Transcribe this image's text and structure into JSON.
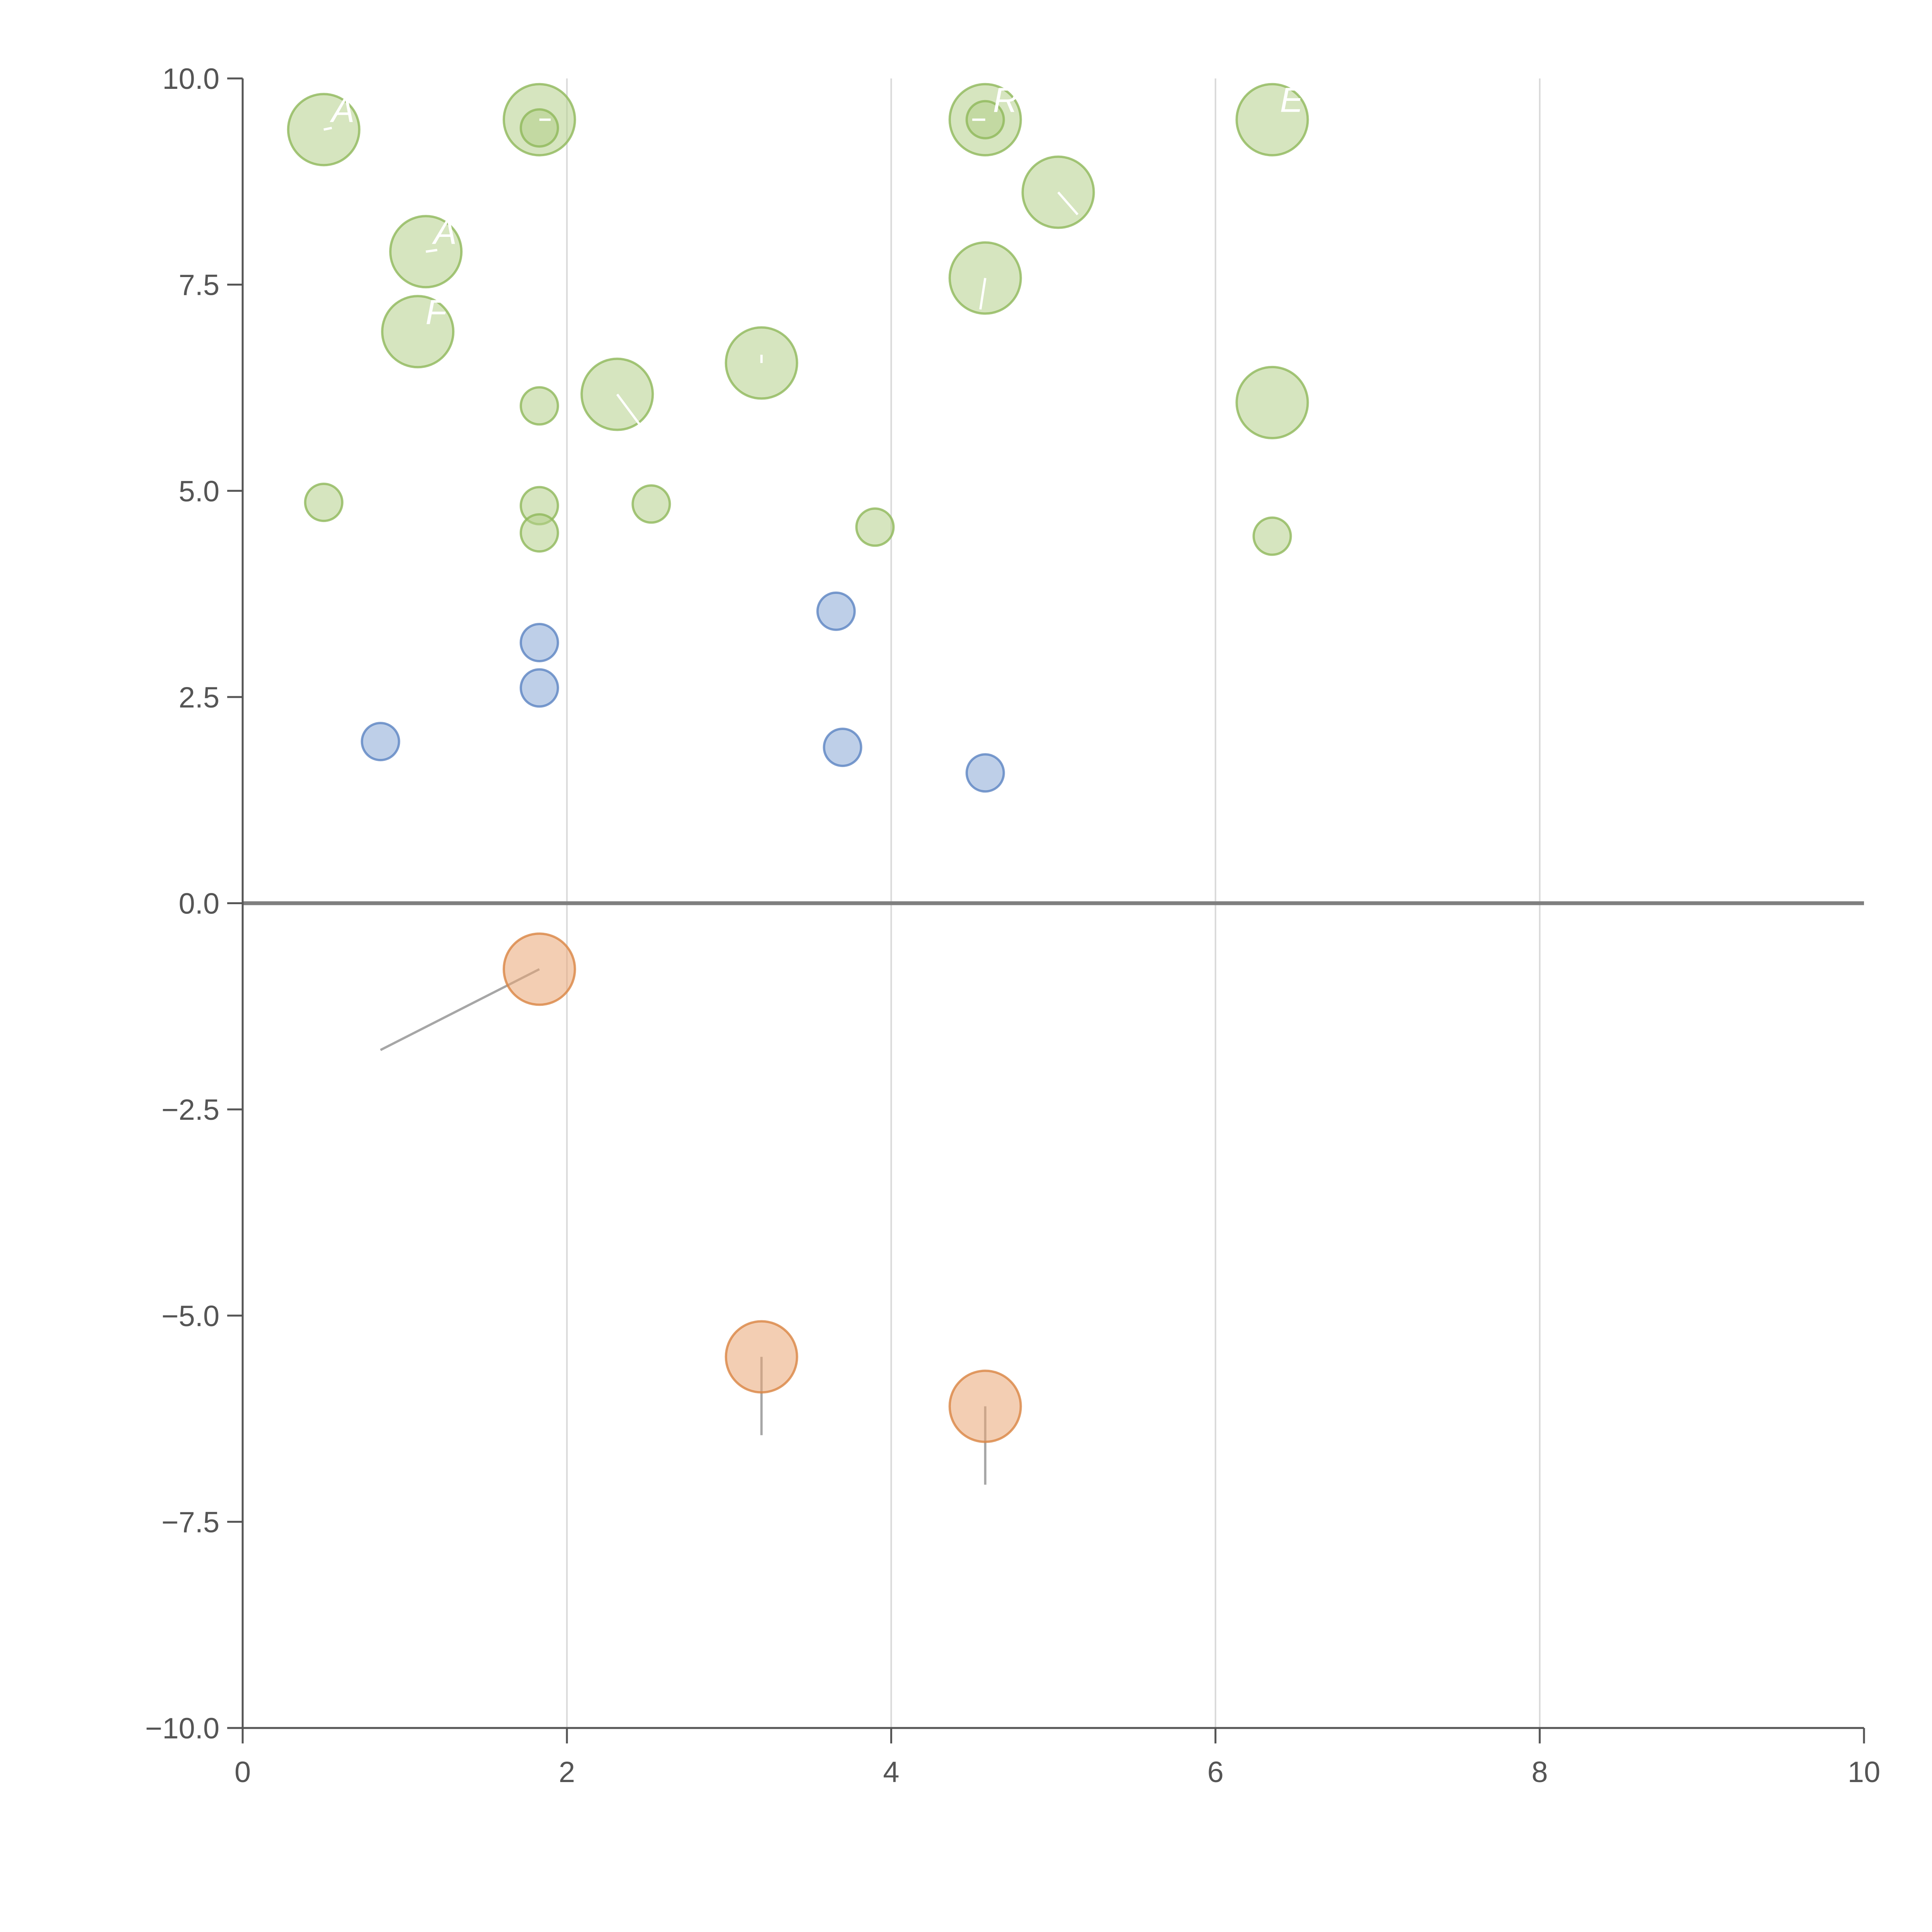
{
  "chart_data": {
    "type": "scatter",
    "title": "",
    "xlabel": "",
    "ylabel": "",
    "xlim": [
      0,
      10
    ],
    "ylim": [
      -10,
      10
    ],
    "x_ticks": [
      0,
      2,
      4,
      6,
      8,
      10
    ],
    "x_tick_labels": [
      "0",
      "2",
      "4",
      "6",
      "8",
      "10"
    ],
    "y_ticks": [
      10,
      7.5,
      5,
      2.5,
      0,
      -2.5,
      -5,
      -7.5,
      -10
    ],
    "y_tick_labels": [
      "10.0",
      "7.5",
      "5.0",
      "2.5",
      "0.0",
      "−2.5",
      "−5.0",
      "−7.5",
      "−10.0"
    ],
    "vertical_grid_at": [
      2,
      4,
      6,
      8
    ],
    "zero_line": true,
    "colors": {
      "green_fill": "#b5d08a",
      "green_stroke": "#8fb85a",
      "blue_fill": "#89a8d6",
      "blue_stroke": "#5b83c2",
      "orange_fill": "#e9a574",
      "orange_stroke": "#d98442",
      "axis": "#555555",
      "grid": "#d9d9d9",
      "zero_line": "#7f7f7f",
      "leader_light": "#ffffff",
      "leader_dark": "#a6a6a6"
    },
    "series": [
      {
        "name": "green",
        "color_key": "green",
        "points": [
          {
            "x": 0.5,
            "y": 9.38,
            "size": "large",
            "label": "A",
            "leader_to": [
              0.55,
              9.4
            ]
          },
          {
            "x": 1.83,
            "y": 9.5,
            "size": "large",
            "leader_to": [
              1.9,
              9.5
            ]
          },
          {
            "x": 1.83,
            "y": 9.4,
            "size": "small"
          },
          {
            "x": 4.58,
            "y": 9.5,
            "size": "large",
            "label": "R",
            "leader_to": [
              4.5,
              9.5
            ]
          },
          {
            "x": 4.58,
            "y": 9.5,
            "size": "small"
          },
          {
            "x": 6.35,
            "y": 9.5,
            "size": "large",
            "label": "E"
          },
          {
            "x": 1.13,
            "y": 7.9,
            "size": "large",
            "label": "A",
            "leader_to": [
              1.2,
              7.92
            ]
          },
          {
            "x": 5.03,
            "y": 8.62,
            "size": "large",
            "leader_to": [
              5.15,
              8.35
            ]
          },
          {
            "x": 4.58,
            "y": 7.58,
            "size": "large",
            "leader_to": [
              4.55,
              7.2
            ]
          },
          {
            "x": 1.08,
            "y": 6.93,
            "size": "large",
            "label": "F"
          },
          {
            "x": 3.2,
            "y": 6.55,
            "size": "large",
            "leader_to": [
              3.2,
              6.65
            ]
          },
          {
            "x": 2.31,
            "y": 6.17,
            "size": "large",
            "leader_to": [
              2.45,
              5.8
            ]
          },
          {
            "x": 6.35,
            "y": 6.07,
            "size": "large"
          },
          {
            "x": 1.83,
            "y": 6.03,
            "size": "small"
          },
          {
            "x": 0.5,
            "y": 4.86,
            "size": "small"
          },
          {
            "x": 1.83,
            "y": 4.82,
            "size": "small"
          },
          {
            "x": 2.52,
            "y": 4.84,
            "size": "small"
          },
          {
            "x": 1.83,
            "y": 4.49,
            "size": "small"
          },
          {
            "x": 3.9,
            "y": 4.56,
            "size": "small"
          },
          {
            "x": 6.35,
            "y": 4.45,
            "size": "small"
          }
        ]
      },
      {
        "name": "blue",
        "color_key": "blue",
        "points": [
          {
            "x": 3.66,
            "y": 3.54,
            "size": "small"
          },
          {
            "x": 1.83,
            "y": 3.16,
            "size": "small"
          },
          {
            "x": 1.83,
            "y": 2.61,
            "size": "small"
          },
          {
            "x": 0.85,
            "y": 1.96,
            "size": "small"
          },
          {
            "x": 3.7,
            "y": 1.89,
            "size": "small"
          },
          {
            "x": 4.58,
            "y": 1.58,
            "size": "small"
          }
        ]
      },
      {
        "name": "orange",
        "color_key": "orange",
        "points": [
          {
            "x": 1.83,
            "y": -0.8,
            "size": "large",
            "leader_to": [
              0.85,
              -1.78
            ]
          },
          {
            "x": 3.2,
            "y": -5.5,
            "size": "large",
            "leader_to": [
              3.2,
              -6.45
            ]
          },
          {
            "x": 4.58,
            "y": -6.1,
            "size": "large",
            "leader_to": [
              4.58,
              -7.05
            ]
          }
        ]
      }
    ]
  }
}
